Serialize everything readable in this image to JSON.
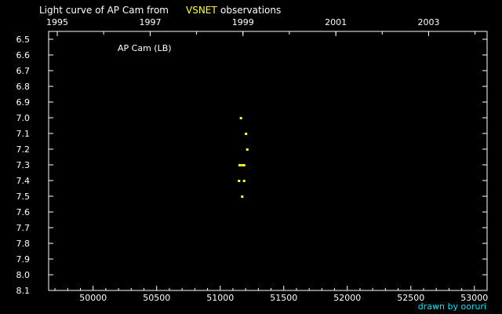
{
  "title": {
    "prefix": "Light curve of AP Cam from",
    "source": "VSNET",
    "suffix": "observations"
  },
  "annotation": "AP Cam (LB)",
  "credit": "drawn by ooruri",
  "colors": {
    "background": "#000000",
    "axis": "#ffffff",
    "text": "#ffffff",
    "source_highlight": "#ffff33",
    "points": "#ffff33",
    "credit": "#00e5ff"
  },
  "chart_data": {
    "type": "scatter",
    "xlim": [
      49650,
      53100
    ],
    "ylim": [
      6.45,
      8.1
    ],
    "y_inverted": true,
    "x_ticks": [
      {
        "value": 50000,
        "label": "50000"
      },
      {
        "value": 50500,
        "label": "50500"
      },
      {
        "value": 51000,
        "label": "51000"
      },
      {
        "value": 51500,
        "label": "51500"
      },
      {
        "value": 52000,
        "label": "52000"
      },
      {
        "value": 52500,
        "label": "52500"
      },
      {
        "value": 53000,
        "label": "53000"
      }
    ],
    "x_minor_step": 100,
    "y_ticks": [
      {
        "value": 6.5,
        "label": "6.5"
      },
      {
        "value": 6.6,
        "label": "6.6"
      },
      {
        "value": 6.7,
        "label": "6.7"
      },
      {
        "value": 6.8,
        "label": "6.8"
      },
      {
        "value": 6.9,
        "label": "6.9"
      },
      {
        "value": 7.0,
        "label": "7.0"
      },
      {
        "value": 7.1,
        "label": "7.1"
      },
      {
        "value": 7.2,
        "label": "7.2"
      },
      {
        "value": 7.3,
        "label": "7.3"
      },
      {
        "value": 7.4,
        "label": "7.4"
      },
      {
        "value": 7.5,
        "label": "7.5"
      },
      {
        "value": 7.6,
        "label": "7.6"
      },
      {
        "value": 7.7,
        "label": "7.7"
      },
      {
        "value": 7.8,
        "label": "7.8"
      },
      {
        "value": 7.9,
        "label": "7.9"
      },
      {
        "value": 8.0,
        "label": "8.0"
      },
      {
        "value": 8.1,
        "label": "8.1"
      }
    ],
    "top_axis_years": [
      {
        "jd": 49718,
        "label": "1995"
      },
      {
        "jd": 50449,
        "label": "1997"
      },
      {
        "jd": 51179,
        "label": "1999"
      },
      {
        "jd": 51910,
        "label": "2001"
      },
      {
        "jd": 52640,
        "label": "2003"
      }
    ],
    "top_minor_years_jd": [
      49718,
      50083,
      50449,
      50814,
      51179,
      51544,
      51910,
      52275,
      52640,
      53005
    ],
    "points": [
      {
        "x": 51160,
        "y": 7.0
      },
      {
        "x": 51200,
        "y": 7.1
      },
      {
        "x": 51210,
        "y": 7.2
      },
      {
        "x": 51150,
        "y": 7.3
      },
      {
        "x": 51170,
        "y": 7.3
      },
      {
        "x": 51185,
        "y": 7.3
      },
      {
        "x": 51145,
        "y": 7.4
      },
      {
        "x": 51185,
        "y": 7.4
      },
      {
        "x": 51170,
        "y": 7.5
      }
    ]
  }
}
